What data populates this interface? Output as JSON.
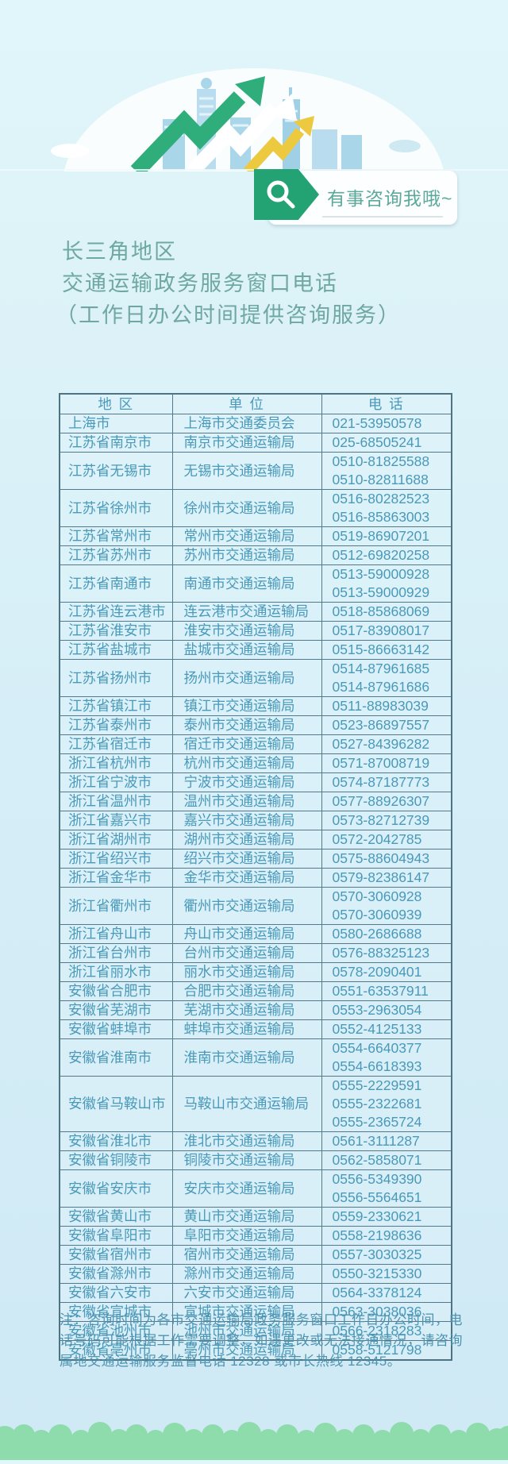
{
  "banner": {
    "text": "有事咨询我哦~",
    "icon": "search-magnifier",
    "tag_color": "#23a273"
  },
  "title": {
    "line1": "长三角地区",
    "line2": "交通运输政务服务窗口电话",
    "line3": "（工作日办公时间提供咨询服务）"
  },
  "table": {
    "headers": [
      "地  区",
      "单  位",
      "电  话"
    ],
    "rows": [
      {
        "region": "上海市",
        "unit": "上海市交通委员会",
        "phone": "021-53950578"
      },
      {
        "region": "江苏省南京市",
        "unit": "南京市交通运输局",
        "phone": "025-68505241"
      },
      {
        "region": "江苏省无锡市",
        "unit": "无锡市交通运输局",
        "phone": "0510-81825588\n0510-82811688"
      },
      {
        "region": "江苏省徐州市",
        "unit": "徐州市交通运输局",
        "phone": "0516-80282523\n0516-85863003"
      },
      {
        "region": "江苏省常州市",
        "unit": "常州市交通运输局",
        "phone": "0519-86907201"
      },
      {
        "region": "江苏省苏州市",
        "unit": "苏州市交通运输局",
        "phone": "0512-69820258"
      },
      {
        "region": "江苏省南通市",
        "unit": "南通市交通运输局",
        "phone": "0513-59000928\n0513-59000929"
      },
      {
        "region": "江苏省连云港市",
        "unit": "连云港市交通运输局",
        "phone": "0518-85868069"
      },
      {
        "region": "江苏省淮安市",
        "unit": "淮安市交通运输局",
        "phone": "0517-83908017"
      },
      {
        "region": "江苏省盐城市",
        "unit": "盐城市交通运输局",
        "phone": "0515-86663142"
      },
      {
        "region": "江苏省扬州市",
        "unit": "扬州市交通运输局",
        "phone": "0514-87961685\n0514-87961686"
      },
      {
        "region": "江苏省镇江市",
        "unit": "镇江市交通运输局",
        "phone": "0511-88983039"
      },
      {
        "region": "江苏省泰州市",
        "unit": "泰州市交通运输局",
        "phone": "0523-86897557"
      },
      {
        "region": "江苏省宿迁市",
        "unit": "宿迁市交通运输局",
        "phone": "0527-84396282"
      },
      {
        "region": "浙江省杭州市",
        "unit": "杭州市交通运输局",
        "phone": "0571-87008719"
      },
      {
        "region": "浙江省宁波市",
        "unit": "宁波市交通运输局",
        "phone": "0574-87187773"
      },
      {
        "region": "浙江省温州市",
        "unit": "温州市交通运输局",
        "phone": "0577-88926307"
      },
      {
        "region": "浙江省嘉兴市",
        "unit": "嘉兴市交通运输局",
        "phone": "0573-82712739"
      },
      {
        "region": "浙江省湖州市",
        "unit": "湖州市交通运输局",
        "phone": "0572-2042785"
      },
      {
        "region": "浙江省绍兴市",
        "unit": "绍兴市交通运输局",
        "phone": "0575-88604943"
      },
      {
        "region": "浙江省金华市",
        "unit": "金华市交通运输局",
        "phone": "0579-82386147"
      },
      {
        "region": "浙江省衢州市",
        "unit": "衢州市交通运输局",
        "phone": "0570-3060928\n0570-3060939"
      },
      {
        "region": "浙江省舟山市",
        "unit": "舟山市交通运输局",
        "phone": "0580-2686688"
      },
      {
        "region": "浙江省台州市",
        "unit": "台州市交通运输局",
        "phone": "0576-88325123"
      },
      {
        "region": "浙江省丽水市",
        "unit": "丽水市交通运输局",
        "phone": "0578-2090401"
      },
      {
        "region": "安徽省合肥市",
        "unit": "合肥市交通运输局",
        "phone": "0551-63537911"
      },
      {
        "region": "安徽省芜湖市",
        "unit": "芜湖市交通运输局",
        "phone": "0553-2963054"
      },
      {
        "region": "安徽省蚌埠市",
        "unit": "蚌埠市交通运输局",
        "phone": "0552-4125133"
      },
      {
        "region": "安徽省淮南市",
        "unit": "淮南市交通运输局",
        "phone": "0554-6640377\n0554-6618393"
      },
      {
        "region": "安徽省马鞍山市",
        "unit": "马鞍山市交通运输局",
        "phone": "0555-2229591\n0555-2322681\n0555-2365724"
      },
      {
        "region": "安徽省淮北市",
        "unit": "淮北市交通运输局",
        "phone": "0561-3111287"
      },
      {
        "region": "安徽省铜陵市",
        "unit": "铜陵市交通运输局",
        "phone": "0562-5858071"
      },
      {
        "region": "安徽省安庆市",
        "unit": "安庆市交通运输局",
        "phone": "0556-5349390\n0556-5564651"
      },
      {
        "region": "安徽省黄山市",
        "unit": "黄山市交通运输局",
        "phone": "0559-2330621"
      },
      {
        "region": "安徽省阜阳市",
        "unit": "阜阳市交通运输局",
        "phone": "0558-2198636"
      },
      {
        "region": "安徽省宿州市",
        "unit": "宿州市交通运输局",
        "phone": "0557-3030325"
      },
      {
        "region": "安徽省滁州市",
        "unit": "滁州市交通运输局",
        "phone": "0550-3215330"
      },
      {
        "region": "安徽省六安市",
        "unit": "六安市交通运输局",
        "phone": "0564-3378124"
      },
      {
        "region": "安徽省宣城市",
        "unit": "宣城市交通运输局",
        "phone": "0563-3038036"
      },
      {
        "region": "安徽省池州市",
        "unit": "池州市交通运输局",
        "phone": "0566-2318283"
      },
      {
        "region": "安徽省亳州市",
        "unit": "亳州市交通运输局",
        "phone": "0558-5121798"
      }
    ]
  },
  "note": "注：咨询时间为各市交通运输局政务服务窗口工作日办公时间，电话号码可能根据工作需要调整，如遇更改或无法接通情况，请咨询属地交通运输服务监督电话 12328 或市长热线 12345。",
  "colors": {
    "accent_green": "#2fae7c",
    "accent_yellow": "#edc93f",
    "table_text": "#4a99b9",
    "title_text": "#6fa8a2",
    "footer_green": "#8edcab",
    "background_top": "#e1f6fa",
    "background_bottom": "#cfe9f5"
  }
}
